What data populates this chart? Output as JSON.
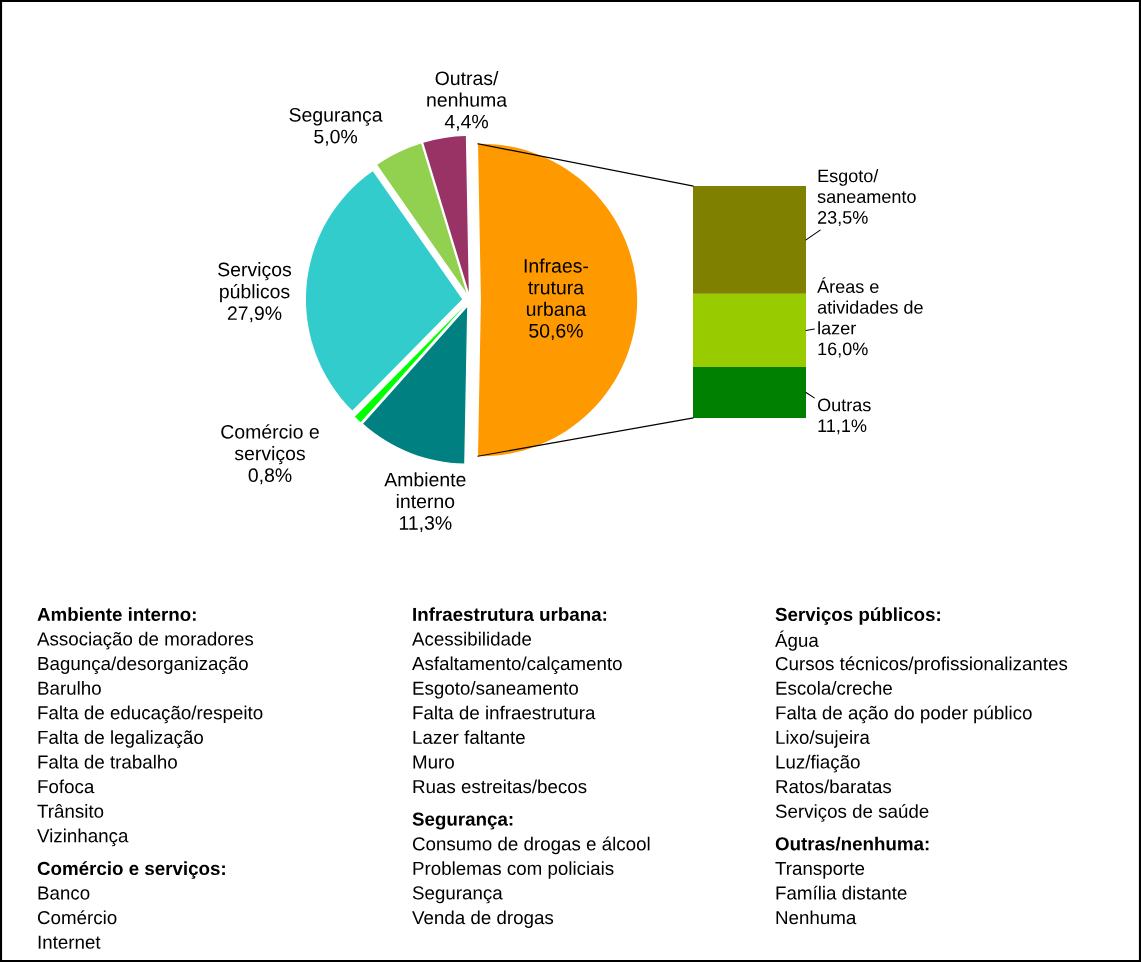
{
  "chart_data": [
    {
      "type": "pie",
      "categories": [
        "Infraes-\ntrutura\nurbana",
        "Outras/\nnenhuma",
        "Segurança",
        "Serviços\npúblicos",
        "Comércio e\nserviços",
        "Ambiente\ninterno"
      ],
      "values": [
        50.6,
        4.4,
        5.0,
        27.9,
        0.8,
        11.3
      ],
      "colors": [
        "#ff9900",
        "#993366",
        "#92d050",
        "#33cccc",
        "#00ff00",
        "#008080"
      ],
      "value_labels": [
        "50,6%",
        "4,4%",
        "5,0%",
        "27,9%",
        "0,8%",
        "11,3%"
      ]
    },
    {
      "type": "bar",
      "stacked": true,
      "categories": [
        null
      ],
      "series": [
        {
          "name": "Outras",
          "color": "#008000",
          "values": [
            11.1
          ],
          "value_labels": [
            "11,1%"
          ]
        },
        {
          "name": "Áreas e\natividades de\nlazer",
          "color": "#99cc00",
          "values": [
            16.0
          ],
          "value_labels": [
            "16,0%"
          ]
        },
        {
          "name": "Esgoto/\nsaneamento",
          "color": "#808000",
          "values": [
            23.5
          ],
          "value_labels": [
            "23,5%"
          ]
        }
      ]
    },
    {
      "type": "other",
      "annotations": [
        "Ambiente interno:",
        "Associação de moradores",
        "Bagunça/desorganização",
        "Barulho",
        "Falta de educação/respeito",
        "Falta de legalização",
        "Falta de trabalho",
        "Fofoca",
        "Trânsito",
        "Vizinhança",
        "Comércio e serviços:",
        "Banco",
        "Comércio",
        "Internet",
        "Infraestrutura urbana:",
        "Acessibilidade",
        "Asfaltamento/calçamento",
        "Esgoto/saneamento",
        "Falta de infraestrutura",
        "Lazer faltante",
        "Muro",
        "Ruas estreitas/becos",
        "Segurança:",
        "Consumo de drogas e álcool",
        "Problemas com policiais",
        "Segurança",
        "Venda de drogas",
        "Serviços públicos:",
        "Água",
        "Cursos técnicos/profissionalizantes",
        "Escola/creche",
        "Falta de ação do poder público",
        "Lixo/sujeira",
        "Luz/fiação",
        "Ratos/baratas",
        "Serviços de saúde",
        "Outras/nenhuma:",
        "Transporte",
        "Família distante",
        "Nenhuma"
      ]
    }
  ]
}
